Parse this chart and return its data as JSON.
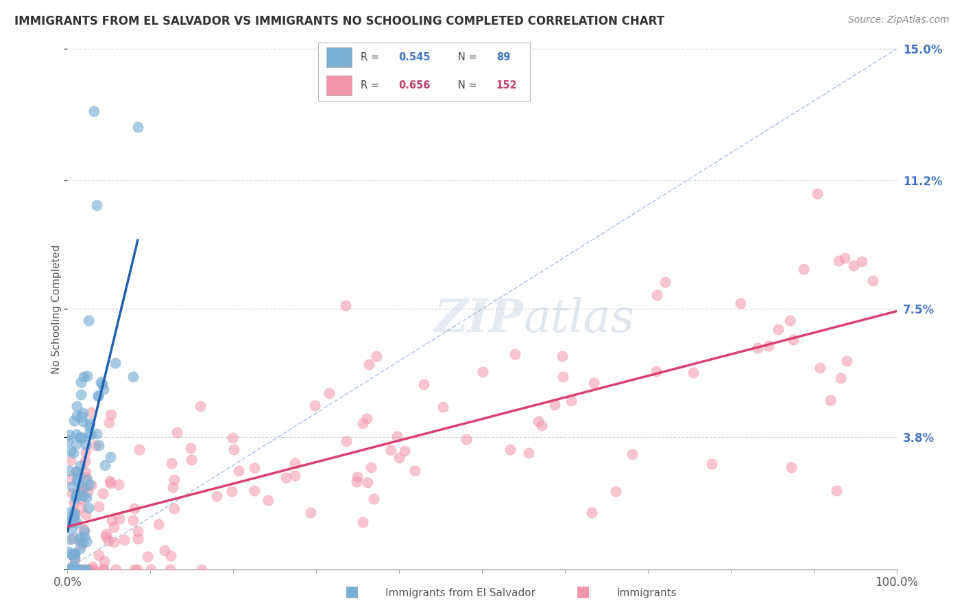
{
  "title": "IMMIGRANTS FROM EL SALVADOR VS IMMIGRANTS NO SCHOOLING COMPLETED CORRELATION CHART",
  "source": "Source: ZipAtlas.com",
  "xlabel_blue": "Immigrants from El Salvador",
  "xlabel_pink": "Immigrants",
  "ylabel": "No Schooling Completed",
  "R_blue": 0.545,
  "N_blue": 89,
  "R_pink": 0.656,
  "N_pink": 152,
  "color_blue": "#7bafd4",
  "color_pink": "#f195a8",
  "regression_blue": "#2060b0",
  "regression_pink": "#d94070",
  "dash_color": "#a0b8d8",
  "xlim": [
    0,
    100
  ],
  "ylim": [
    0,
    15
  ],
  "yticks": [
    0,
    3.8,
    7.5,
    11.2,
    15.0
  ],
  "xticks": [
    0,
    10,
    20,
    30,
    40,
    50,
    60,
    70,
    80,
    90,
    100
  ],
  "title_fontsize": 12,
  "source_fontsize": 10,
  "tick_label_color_blue": "#4472c4",
  "tick_label_color_pink": "#c0406a",
  "watermark_text": "ZIPatlas",
  "legend_R_blue": "0.545",
  "legend_N_blue": "89",
  "legend_R_pink": "0.656",
  "legend_N_pink": "152"
}
